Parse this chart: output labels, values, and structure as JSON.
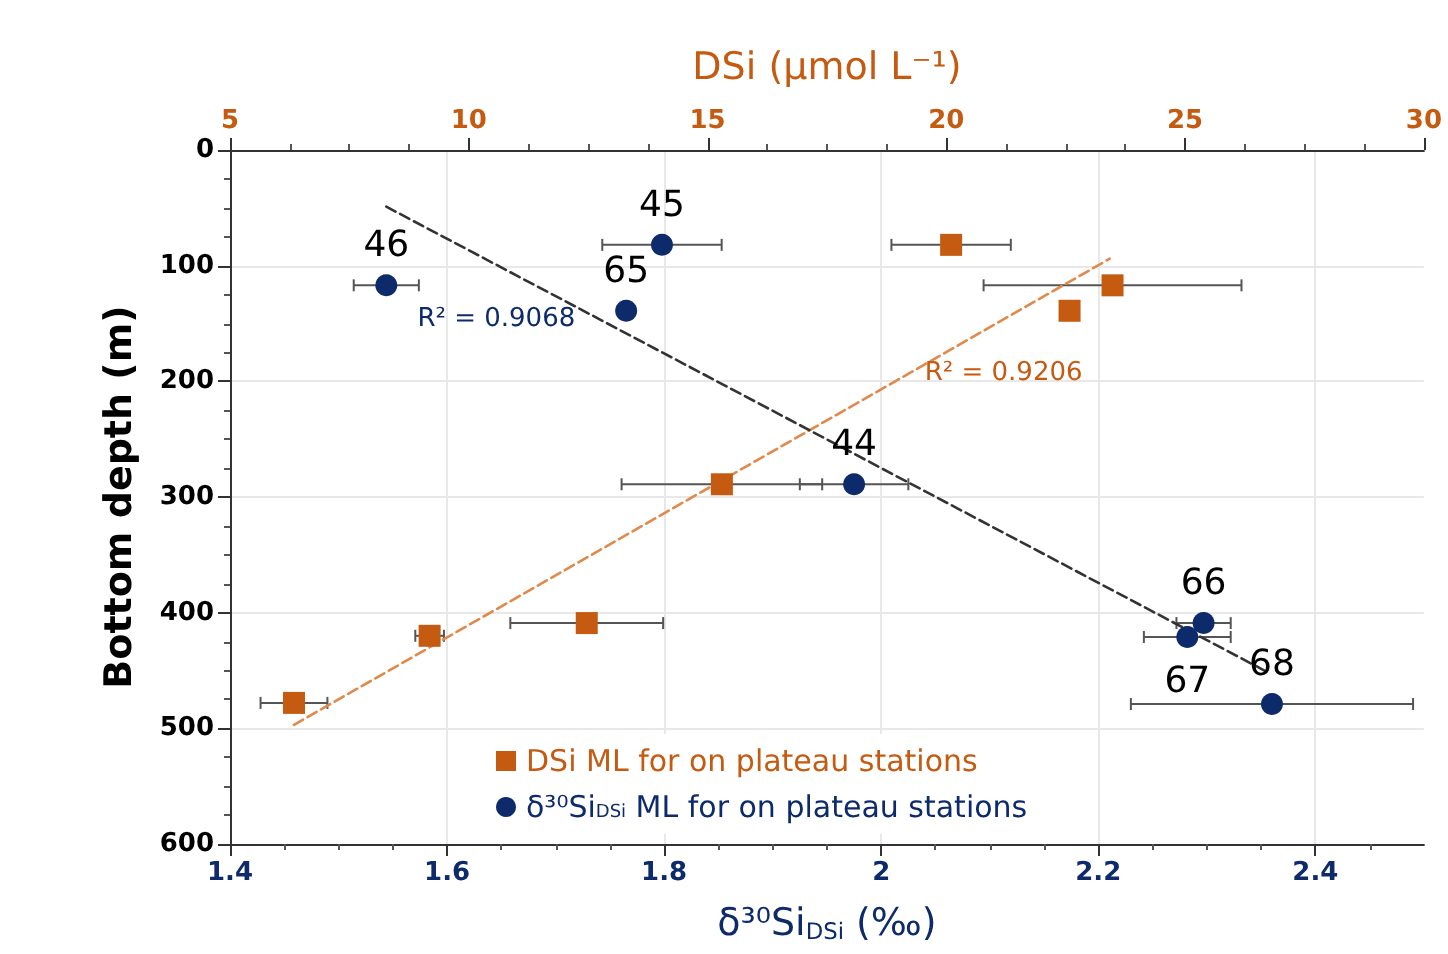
{
  "chart_data": {
    "type": "scatter",
    "xlabel": "δ³⁰Si$_{DSi}$ (‰)",
    "ylabel": "Bottom depth (m)",
    "x2label": "DSi (µmol L⁻¹)",
    "xlim": [
      1.4,
      2.5
    ],
    "xticks": [
      1.4,
      1.6,
      1.8,
      2,
      2.2,
      2.4
    ],
    "x2lim": [
      5,
      30
    ],
    "x2ticks": [
      5,
      10,
      15,
      20,
      25,
      30
    ],
    "ylim": [
      600,
      0
    ],
    "yticks": [
      0,
      100,
      200,
      300,
      400,
      500,
      600
    ],
    "grid": true,
    "legend": "bottom left",
    "series": [
      {
        "name": "DSi ML for on plateau stations",
        "axis": "x2",
        "marker": "square",
        "color": "#c55a11",
        "x": [
          20.1,
          23.48,
          22.58,
          15.3,
          6.34,
          9.18,
          12.47
        ],
        "values": [
          82,
          117,
          139,
          289,
          478,
          420,
          409
        ],
        "xerrors": [
          1.25,
          2.7,
          null,
          2.1,
          0.7,
          0.3,
          1.6
        ]
      },
      {
        "name": "δ³⁰Si$_{DSi}$ ML for on plateau stations",
        "marker": "circle",
        "color": "#0d2b6b",
        "x": [
          1.544,
          1.798,
          1.765,
          1.975,
          2.297,
          2.282,
          2.36
        ],
        "values": [
          117,
          82,
          139,
          289,
          409,
          421,
          479
        ],
        "xerrors": [
          0.03,
          0.055,
          null,
          0.05,
          0.025,
          0.04,
          0.13
        ]
      },
      {
        "type": "line",
        "axis": "x2",
        "marker": "none",
        "line_style": "dashed",
        "color": "#e0894a",
        "x": [
          6.34,
          23.42
        ],
        "values": [
          497,
          94
        ]
      },
      {
        "type": "line",
        "marker": "none",
        "line_style": "dashed",
        "color": "#333333",
        "x": [
          1.544,
          2.355
        ],
        "values": [
          49,
          451
        ]
      }
    ],
    "annotations": [
      "R² = 0.9206",
      "R² = 0.9068",
      {
        "text": "46",
        "x": 1.544,
        "y": 117
      },
      {
        "text": "45",
        "x": 1.798,
        "y": 82
      },
      {
        "text": "65",
        "x": 1.765,
        "y": 139
      },
      {
        "text": "44",
        "x": 1.975,
        "y": 289
      },
      {
        "text": "66",
        "x": 2.297,
        "y": 409
      },
      {
        "text": "67",
        "x": 2.282,
        "y": 421
      },
      {
        "text": "68",
        "x": 2.36,
        "y": 479
      }
    ]
  }
}
